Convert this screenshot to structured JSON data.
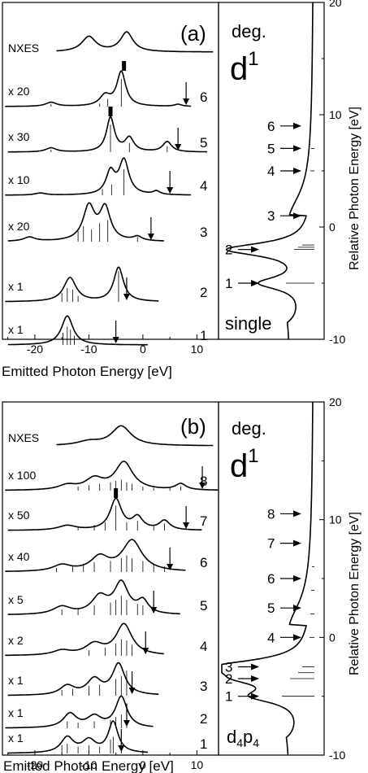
{
  "chart_data": [
    {
      "panel_label": "(a)",
      "type": "line",
      "xlabel": "Emitted Photon Energy [eV]",
      "xticks": [
        -20,
        -10,
        0,
        10
      ],
      "xlim": [
        -26,
        14
      ],
      "reference_label": "NXES",
      "reference": {
        "peaks": [
          {
            "x": -10,
            "height": 0.62,
            "width": 1.6
          },
          {
            "x": -3,
            "height": 0.8,
            "width": 1.4
          }
        ]
      },
      "series": [
        {
          "index": "6",
          "scale": "x 20",
          "arrow_x": 8,
          "end_x": 9,
          "mark_x": -3.5,
          "peaks": [
            {
              "x": -4,
              "height": 1.0,
              "width": 1.0
            },
            {
              "x": -7,
              "height": 0.3,
              "width": 1.2
            },
            {
              "x": -17,
              "height": 0.12,
              "width": 1.2
            },
            {
              "x": 6.5,
              "height": 0.06,
              "width": 0.8
            }
          ],
          "sticks": [
            [
              -4,
              0.9
            ],
            [
              -6.5,
              0.25
            ],
            [
              -8,
              0.1
            ],
            [
              -17,
              0.08
            ]
          ]
        },
        {
          "index": "5",
          "scale": "x 30",
          "arrow_x": 6.5,
          "end_x": 12,
          "mark_x": -6,
          "peaks": [
            {
              "x": -6,
              "height": 1.0,
              "width": 0.9
            },
            {
              "x": -2.5,
              "height": 0.4,
              "width": 1.0
            },
            {
              "x": -17,
              "height": 0.12,
              "width": 1.2
            },
            {
              "x": 4.5,
              "height": 0.3,
              "width": 1.0
            }
          ],
          "sticks": [
            [
              -6,
              0.9
            ],
            [
              -2.5,
              0.3
            ],
            [
              4.5,
              0.2
            ],
            [
              -17,
              0.08
            ]
          ]
        },
        {
          "index": "4",
          "scale": "x 10",
          "arrow_x": 5,
          "end_x": 9,
          "peaks": [
            {
              "x": -3.5,
              "height": 1.0,
              "width": 1.1
            },
            {
              "x": -6,
              "height": 0.65,
              "width": 1.0
            },
            {
              "x": 2.5,
              "height": 0.1,
              "width": 0.8
            },
            {
              "x": -19,
              "height": 0.06,
              "width": 1.2
            }
          ],
          "sticks": [
            [
              -3.5,
              0.85
            ],
            [
              -5.8,
              0.35
            ],
            [
              -7.5,
              0.2
            ]
          ]
        },
        {
          "index": "3",
          "scale": "x 20",
          "arrow_x": 1.5,
          "end_x": 4,
          "peaks": [
            {
              "x": -10,
              "height": 1.0,
              "width": 1.3
            },
            {
              "x": -7,
              "height": 0.95,
              "width": 1.2
            },
            {
              "x": -21,
              "height": 0.12,
              "width": 1.3
            },
            {
              "x": -1,
              "height": 0.12,
              "width": 1.0
            }
          ],
          "sticks": [
            [
              -12,
              0.35
            ],
            [
              -11,
              0.5
            ],
            [
              -9.5,
              0.4
            ],
            [
              -8,
              0.6
            ],
            [
              -6.5,
              0.7
            ],
            [
              -1,
              0.15
            ]
          ]
        },
        {
          "index": "2",
          "scale": "x 1",
          "arrow_x": -3,
          "end_x": 3,
          "peaks": [
            {
              "x": -13.5,
              "height": 0.7,
              "width": 1.4
            },
            {
              "x": -4.5,
              "height": 1.0,
              "width": 1.1
            }
          ],
          "sticks": [
            [
              -15,
              0.3
            ],
            [
              -14,
              0.45
            ],
            [
              -13,
              0.4
            ],
            [
              -12,
              0.2
            ],
            [
              -4.5,
              1.0
            ]
          ]
        },
        {
          "index": "1",
          "scale": "x 1",
          "arrow_x": -5,
          "end_x": 1,
          "peaks": [
            {
              "x": -14,
              "height": 0.85,
              "width": 1.3
            }
          ],
          "sticks": [
            [
              -14.8,
              0.4
            ],
            [
              -14,
              0.6
            ],
            [
              -13.4,
              0.5
            ],
            [
              -12.7,
              0.3
            ]
          ]
        }
      ],
      "side": {
        "title": "deg.",
        "config": "d",
        "config_sup": "1",
        "ylabel": "Relative Photon Energy [eV]",
        "yticks": [
          20,
          10,
          0,
          -10
        ],
        "ylim": [
          -10,
          20
        ],
        "caption": "single",
        "arrows": [
          {
            "label": "6",
            "y": 9
          },
          {
            "label": "5",
            "y": 7
          },
          {
            "label": "4",
            "y": 5
          },
          {
            "label": "3",
            "y": 1
          },
          {
            "label": "2",
            "y": -2
          },
          {
            "label": "1",
            "y": -5
          }
        ],
        "ticks_right": [
          [
            -2,
            0.25
          ],
          [
            -1.8,
            0.2
          ],
          [
            -1.6,
            0.15
          ],
          [
            -5,
            0.35
          ],
          [
            5,
            0.05
          ],
          [
            7,
            0.04
          ]
        ]
      }
    },
    {
      "panel_label": "(b)",
      "type": "line",
      "xlabel": "Emitted Photon Energy [eV]",
      "xticks": [
        -20,
        -10,
        0,
        10
      ],
      "xlim": [
        -26,
        14
      ],
      "reference_label": "NXES",
      "reference": {
        "peaks": [
          {
            "x": -4,
            "height": 0.75,
            "width": 2.2
          },
          {
            "x": -10,
            "height": 0.15,
            "width": 2.5
          }
        ]
      },
      "series": [
        {
          "index": "8",
          "scale": "x 100",
          "arrow_x": 11,
          "end_x": 14,
          "peaks": [
            {
              "x": -3.5,
              "height": 0.9,
              "width": 2.0
            },
            {
              "x": -9,
              "height": 0.35,
              "width": 2.0
            },
            {
              "x": -14,
              "height": 0.15,
              "width": 2.0
            },
            {
              "x": 7,
              "height": 0.2,
              "width": 1.2
            }
          ],
          "sticks": [
            [
              -12,
              0.15
            ],
            [
              -10,
              0.2
            ],
            [
              -8,
              0.25
            ],
            [
              -6,
              0.3
            ],
            [
              -5,
              0.35
            ],
            [
              -4,
              0.4
            ],
            [
              -3,
              0.3
            ],
            [
              -2,
              0.25
            ],
            [
              0,
              0.15
            ],
            [
              2,
              0.1
            ],
            [
              5,
              0.1
            ],
            [
              7,
              0.15
            ]
          ]
        },
        {
          "index": "7",
          "scale": "x 50",
          "arrow_x": 8,
          "end_x": 11,
          "mark_x": -5,
          "peaks": [
            {
              "x": -5,
              "height": 1.0,
              "width": 1.3
            },
            {
              "x": -1,
              "height": 0.4,
              "width": 1.2
            },
            {
              "x": 4,
              "height": 0.3,
              "width": 1.2
            },
            {
              "x": -14,
              "height": 0.15,
              "width": 2.0
            }
          ],
          "sticks": [
            [
              -12,
              0.15
            ],
            [
              -9,
              0.2
            ],
            [
              -7,
              0.3
            ],
            [
              -5,
              0.9
            ],
            [
              -3,
              0.3
            ],
            [
              -1,
              0.35
            ],
            [
              2,
              0.2
            ],
            [
              4,
              0.25
            ]
          ]
        },
        {
          "index": "6",
          "scale": "x 40",
          "arrow_x": 5,
          "end_x": 8,
          "peaks": [
            {
              "x": -2,
              "height": 1.0,
              "width": 2.2
            },
            {
              "x": -8,
              "height": 0.45,
              "width": 2.0
            },
            {
              "x": -15,
              "height": 0.2,
              "width": 2.0
            }
          ],
          "sticks": [
            [
              -16,
              0.15
            ],
            [
              -13,
              0.2
            ],
            [
              -11,
              0.3
            ],
            [
              -9,
              0.35
            ],
            [
              -6,
              0.4
            ],
            [
              -4,
              0.5
            ],
            [
              -3,
              0.6
            ],
            [
              -2,
              0.5
            ],
            [
              0,
              0.4
            ],
            [
              2,
              0.3
            ],
            [
              4,
              0.2
            ]
          ]
        },
        {
          "index": "5",
          "scale": "x 5",
          "arrow_x": 2,
          "end_x": 7,
          "peaks": [
            {
              "x": -4,
              "height": 1.0,
              "width": 1.6
            },
            {
              "x": -8,
              "height": 0.55,
              "width": 1.8
            },
            {
              "x": -15,
              "height": 0.25,
              "width": 2.0
            },
            {
              "x": 0,
              "height": 0.4,
              "width": 1.2
            }
          ],
          "sticks": [
            [
              -15,
              0.2
            ],
            [
              -12,
              0.25
            ],
            [
              -9,
              0.35
            ],
            [
              -6,
              0.45
            ],
            [
              -5,
              0.55
            ],
            [
              -4,
              0.7
            ],
            [
              -3,
              0.55
            ],
            [
              -1,
              0.4
            ],
            [
              0,
              0.35
            ]
          ]
        },
        {
          "index": "4",
          "scale": "x 2",
          "arrow_x": 0.5,
          "end_x": 4,
          "peaks": [
            {
              "x": -3.5,
              "height": 1.0,
              "width": 1.8
            },
            {
              "x": -9,
              "height": 0.35,
              "width": 2.0
            },
            {
              "x": -15,
              "height": 0.15,
              "width": 2.0
            }
          ],
          "sticks": [
            [
              -10,
              0.2
            ],
            [
              -7,
              0.3
            ],
            [
              -5,
              0.45
            ],
            [
              -4,
              0.6
            ],
            [
              -3,
              0.55
            ],
            [
              -2,
              0.4
            ]
          ]
        },
        {
          "index": "3",
          "scale": "x 1",
          "arrow_x": -2,
          "end_x": 3,
          "peaks": [
            {
              "x": -4.5,
              "height": 1.0,
              "width": 1.4
            },
            {
              "x": -9,
              "height": 0.5,
              "width": 1.6
            },
            {
              "x": -14,
              "height": 0.3,
              "width": 1.6
            }
          ],
          "sticks": [
            [
              -15,
              0.2
            ],
            [
              -13,
              0.25
            ],
            [
              -10,
              0.35
            ],
            [
              -8,
              0.4
            ],
            [
              -5,
              0.6
            ],
            [
              -4,
              0.7
            ],
            [
              -3,
              0.9
            ]
          ]
        },
        {
          "index": "2",
          "scale": "x 1",
          "arrow_x": -3,
          "end_x": 2,
          "peaks": [
            {
              "x": -4,
              "height": 1.0,
              "width": 1.3
            },
            {
              "x": -9,
              "height": 0.35,
              "width": 1.6
            },
            {
              "x": -13.5,
              "height": 0.45,
              "width": 1.5
            }
          ],
          "sticks": [
            [
              -14,
              0.25
            ],
            [
              -12,
              0.2
            ],
            [
              -9,
              0.25
            ],
            [
              -6,
              0.3
            ],
            [
              -5,
              0.4
            ],
            [
              -4,
              0.5
            ],
            [
              -3,
              0.9
            ]
          ]
        },
        {
          "index": "1",
          "scale": "x 1",
          "arrow_x": -4,
          "end_x": 1,
          "peaks": [
            {
              "x": -5.5,
              "height": 1.0,
              "width": 1.1
            },
            {
              "x": -10,
              "height": 0.4,
              "width": 1.5
            },
            {
              "x": -14,
              "height": 0.5,
              "width": 1.4
            }
          ],
          "sticks": [
            [
              -15,
              0.3
            ],
            [
              -14,
              0.35
            ],
            [
              -12,
              0.25
            ],
            [
              -10,
              0.3
            ],
            [
              -8,
              0.25
            ],
            [
              -6,
              0.5
            ],
            [
              -5.5,
              0.6
            ],
            [
              -4,
              0.4
            ]
          ]
        }
      ],
      "side": {
        "title": "deg.",
        "config": "d",
        "config_sup": "1",
        "ylabel": "Relative Photon Energy [eV]",
        "yticks": [
          20,
          10,
          0,
          -10
        ],
        "ylim": [
          -10,
          20
        ],
        "caption_parts": [
          "d",
          "4",
          "p",
          "4"
        ],
        "arrows": [
          {
            "label": "8",
            "y": 10.5
          },
          {
            "label": "7",
            "y": 8
          },
          {
            "label": "6",
            "y": 5
          },
          {
            "label": "5",
            "y": 2.5
          },
          {
            "label": "4",
            "y": 0
          },
          {
            "label": "3",
            "y": -2.5
          },
          {
            "label": "2",
            "y": -3.5
          },
          {
            "label": "1",
            "y": -5
          }
        ],
        "ticks_right": [
          [
            -3.5,
            0.3
          ],
          [
            -3,
            0.2
          ],
          [
            -2.5,
            0.15
          ],
          [
            -5,
            0.4
          ],
          [
            0,
            0.06
          ],
          [
            2,
            0.05
          ],
          [
            4,
            0.04
          ],
          [
            6,
            0.03
          ]
        ]
      }
    }
  ]
}
